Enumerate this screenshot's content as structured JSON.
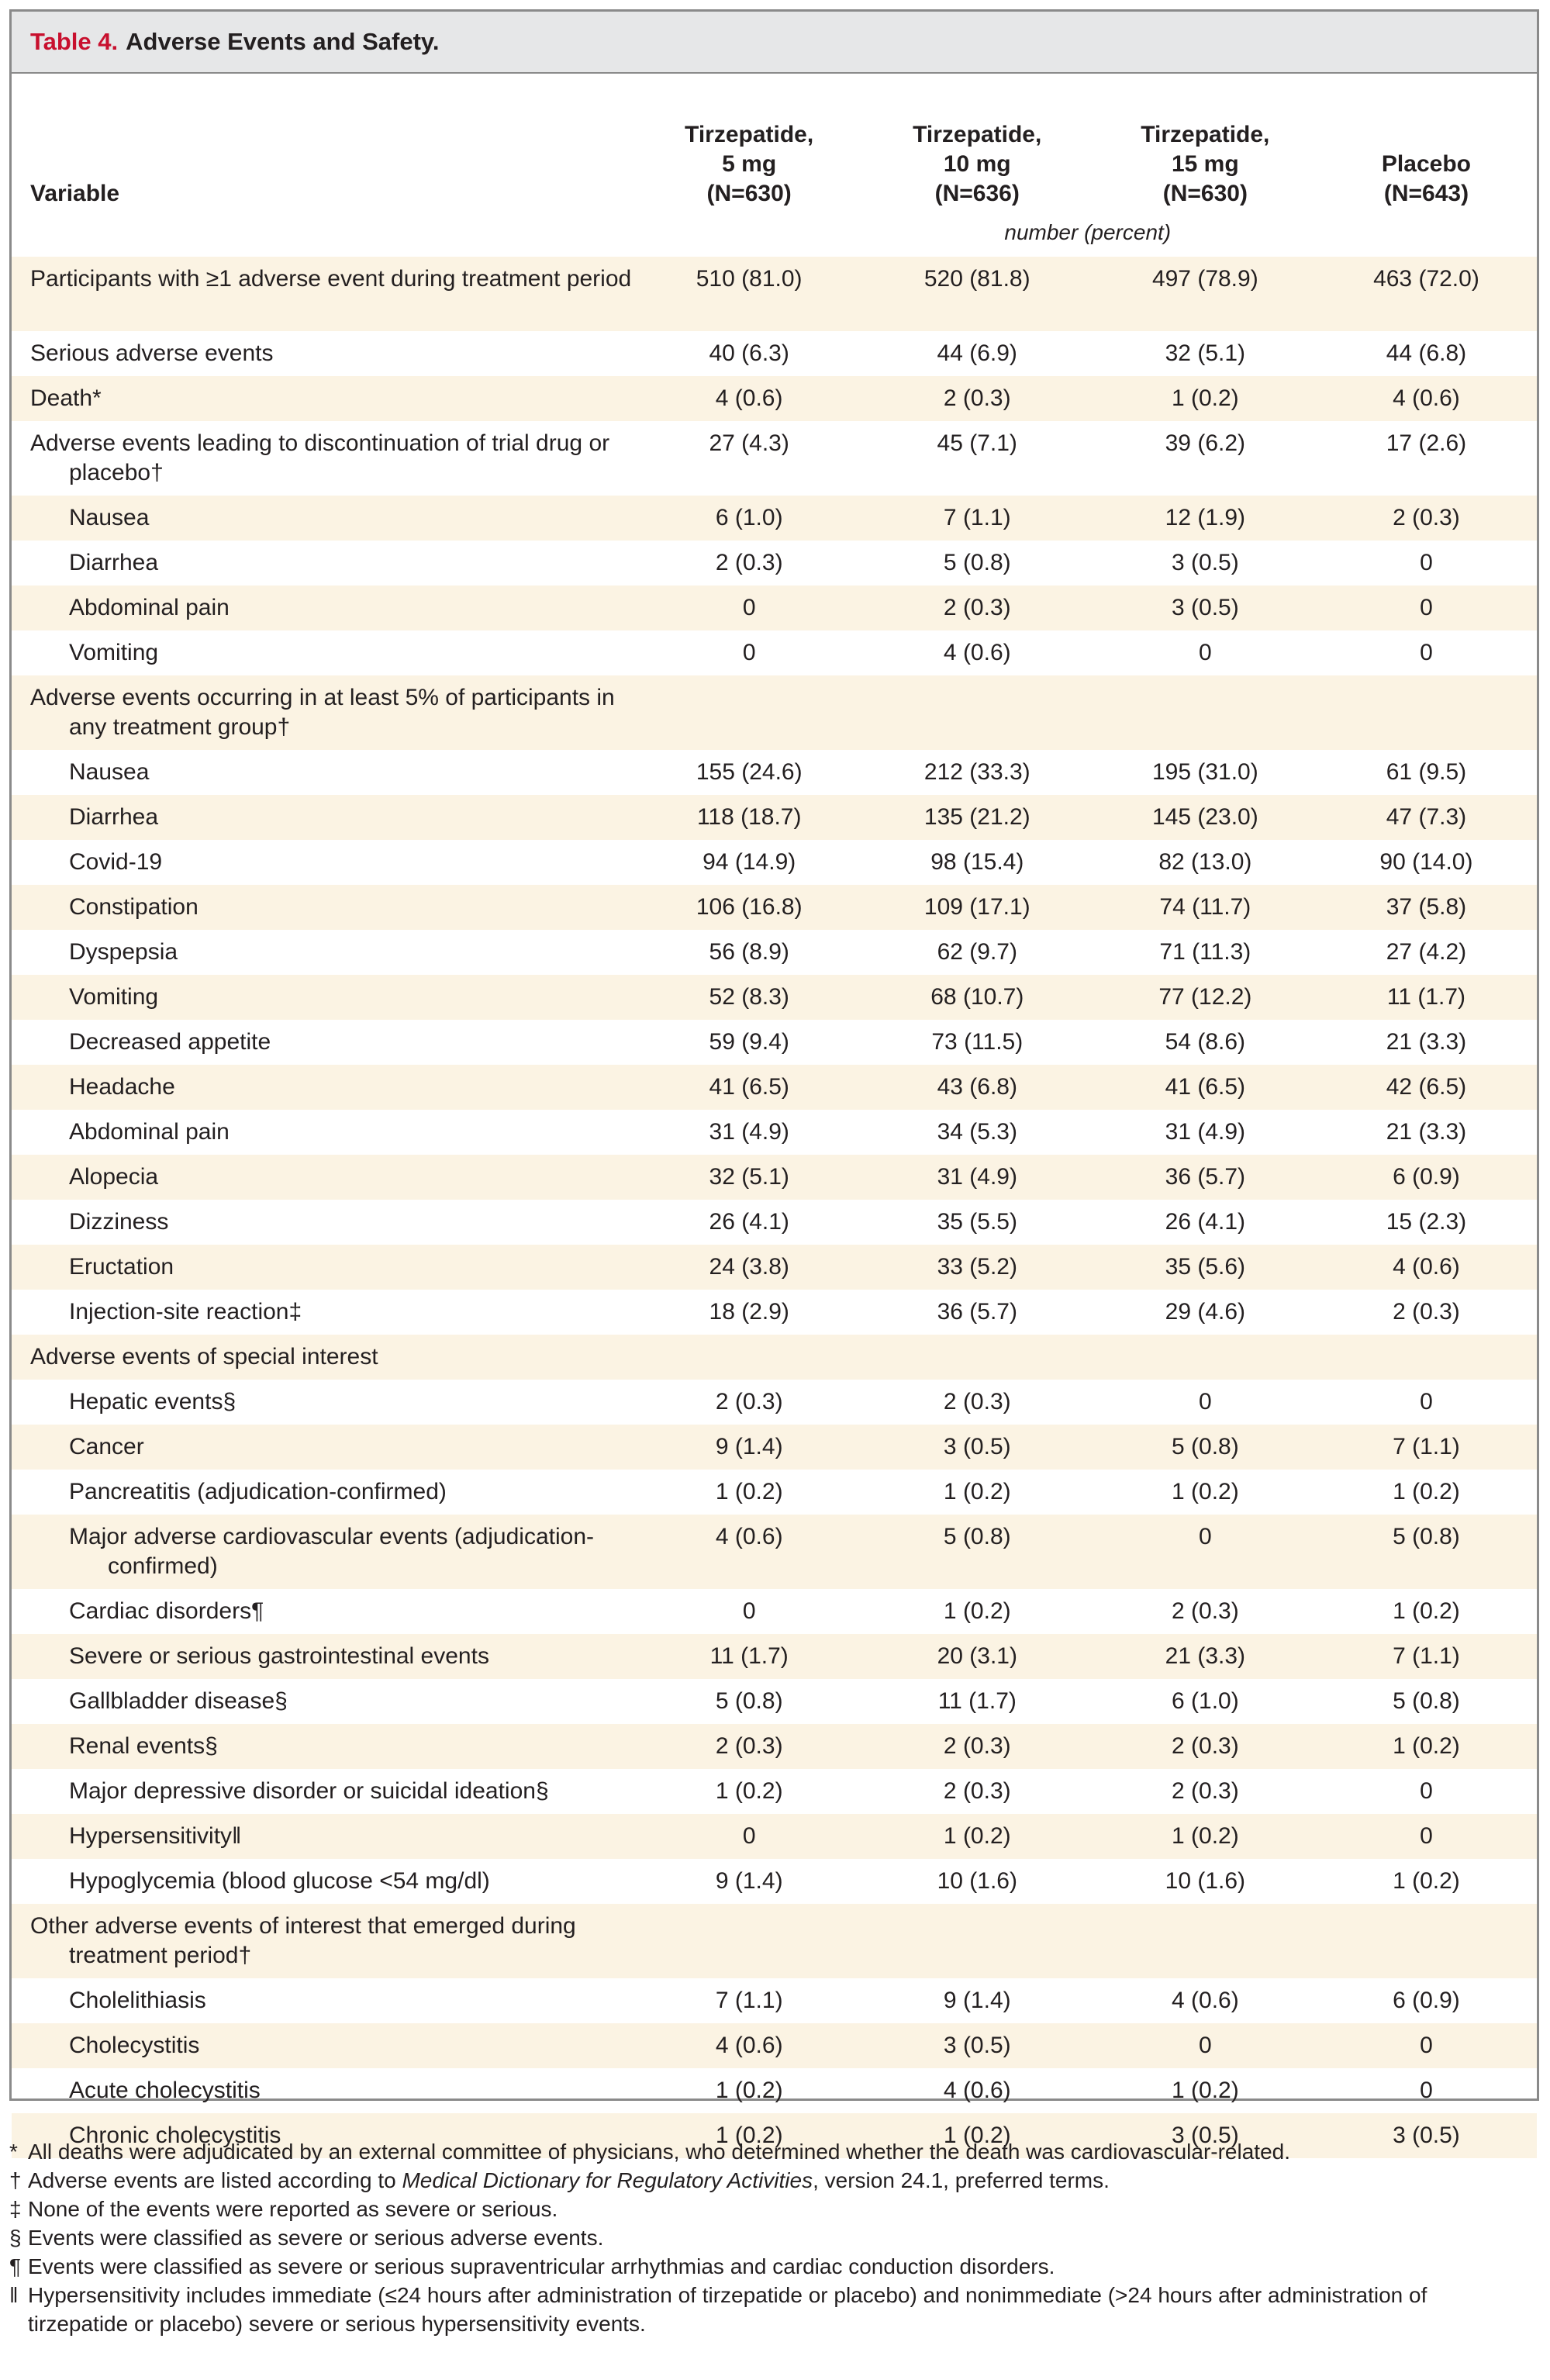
{
  "table": {
    "label": "Table 4.",
    "title": "Adverse Events and Safety.",
    "header": {
      "variable": "Variable",
      "columns": [
        {
          "name": "Tirzepatide,",
          "dose": "5 mg",
          "n": "(N=630)"
        },
        {
          "name": "Tirzepatide,",
          "dose": "10 mg",
          "n": "(N=636)"
        },
        {
          "name": "Tirzepatide,",
          "dose": "15 mg",
          "n": "(N=630)"
        },
        {
          "name": "",
          "dose": "Placebo",
          "n": "(N=643)"
        }
      ],
      "unit": "number (percent)"
    },
    "rows": [
      {
        "label": "Participants with ≥1 adverse event during treatment period",
        "values": [
          "510 (81.0)",
          "520 (81.8)",
          "497 (78.9)",
          "463 (72.0)"
        ]
      },
      {
        "label": "Serious adverse events",
        "values": [
          "40 (6.3)",
          "44 (6.9)",
          "32 (5.1)",
          "44 (6.8)"
        ]
      },
      {
        "label": "Death*",
        "values": [
          "4 (0.6)",
          "2 (0.3)",
          "1 (0.2)",
          "4 (0.6)"
        ]
      },
      {
        "label": "Adverse events leading to discontinuation of trial drug or placebo†",
        "values": [
          "27 (4.3)",
          "45 (7.1)",
          "39 (6.2)",
          "17 (2.6)"
        ]
      },
      {
        "label": "Nausea",
        "values": [
          "6 (1.0)",
          "7 (1.1)",
          "12 (1.9)",
          "2 (0.3)"
        ]
      },
      {
        "label": "Diarrhea",
        "values": [
          "2 (0.3)",
          "5 (0.8)",
          "3 (0.5)",
          "0"
        ]
      },
      {
        "label": "Abdominal pain",
        "values": [
          "0",
          "2 (0.3)",
          "3 (0.5)",
          "0"
        ]
      },
      {
        "label": "Vomiting",
        "values": [
          "0",
          "4 (0.6)",
          "0",
          "0"
        ]
      },
      {
        "label": "Adverse events occurring in at least 5% of participants in any treatment group†",
        "values": [
          "",
          "",
          "",
          ""
        ]
      },
      {
        "label": "Nausea",
        "values": [
          "155 (24.6)",
          "212 (33.3)",
          "195 (31.0)",
          "61 (9.5)"
        ]
      },
      {
        "label": "Diarrhea",
        "values": [
          "118 (18.7)",
          "135 (21.2)",
          "145 (23.0)",
          "47 (7.3)"
        ]
      },
      {
        "label": "Covid-19",
        "values": [
          "94 (14.9)",
          "98 (15.4)",
          "82 (13.0)",
          "90 (14.0)"
        ]
      },
      {
        "label": "Constipation",
        "values": [
          "106 (16.8)",
          "109 (17.1)",
          "74 (11.7)",
          "37 (5.8)"
        ]
      },
      {
        "label": "Dyspepsia",
        "values": [
          "56 (8.9)",
          "62 (9.7)",
          "71 (11.3)",
          "27 (4.2)"
        ]
      },
      {
        "label": "Vomiting",
        "values": [
          "52 (8.3)",
          "68 (10.7)",
          "77 (12.2)",
          "11 (1.7)"
        ]
      },
      {
        "label": "Decreased appetite",
        "values": [
          "59 (9.4)",
          "73 (11.5)",
          "54 (8.6)",
          "21 (3.3)"
        ]
      },
      {
        "label": "Headache",
        "values": [
          "41 (6.5)",
          "43 (6.8)",
          "41 (6.5)",
          "42 (6.5)"
        ]
      },
      {
        "label": "Abdominal pain",
        "values": [
          "31 (4.9)",
          "34 (5.3)",
          "31 (4.9)",
          "21 (3.3)"
        ]
      },
      {
        "label": "Alopecia",
        "values": [
          "32 (5.1)",
          "31 (4.9)",
          "36 (5.7)",
          "6 (0.9)"
        ]
      },
      {
        "label": "Dizziness",
        "values": [
          "26 (4.1)",
          "35 (5.5)",
          "26 (4.1)",
          "15 (2.3)"
        ]
      },
      {
        "label": "Eructation",
        "values": [
          "24 (3.8)",
          "33 (5.2)",
          "35 (5.6)",
          "4 (0.6)"
        ]
      },
      {
        "label": "Injection-site reaction‡",
        "values": [
          "18 (2.9)",
          "36 (5.7)",
          "29 (4.6)",
          "2 (0.3)"
        ]
      },
      {
        "label": "Adverse events of special interest",
        "values": [
          "",
          "",
          "",
          ""
        ]
      },
      {
        "label": "Hepatic events§",
        "values": [
          "2 (0.3)",
          "2 (0.3)",
          "0",
          "0"
        ]
      },
      {
        "label": "Cancer",
        "values": [
          "9 (1.4)",
          "3 (0.5)",
          "5 (0.8)",
          "7 (1.1)"
        ]
      },
      {
        "label": "Pancreatitis (adjudication-confirmed)",
        "values": [
          "1 (0.2)",
          "1 (0.2)",
          "1 (0.2)",
          "1 (0.2)"
        ]
      },
      {
        "label": "Major adverse cardiovascular events (adjudication-confirmed)",
        "values": [
          "4 (0.6)",
          "5 (0.8)",
          "0",
          "5 (0.8)"
        ]
      },
      {
        "label": "Cardiac disorders¶",
        "values": [
          "0",
          "1 (0.2)",
          "2 (0.3)",
          "1 (0.2)"
        ]
      },
      {
        "label": "Severe or serious gastrointestinal events",
        "values": [
          "11 (1.7)",
          "20 (3.1)",
          "21 (3.3)",
          "7 (1.1)"
        ]
      },
      {
        "label": "Gallbladder disease§",
        "values": [
          "5 (0.8)",
          "11 (1.7)",
          "6 (1.0)",
          "5 (0.8)"
        ]
      },
      {
        "label": "Renal events§",
        "values": [
          "2 (0.3)",
          "2 (0.3)",
          "2 (0.3)",
          "1 (0.2)"
        ]
      },
      {
        "label": "Major depressive disorder or suicidal ideation§",
        "values": [
          "1 (0.2)",
          "2 (0.3)",
          "2 (0.3)",
          "0"
        ]
      },
      {
        "label": "Hypersensitivity‖",
        "values": [
          "0",
          "1 (0.2)",
          "1 (0.2)",
          "0"
        ]
      },
      {
        "label": "Hypoglycemia (blood glucose <54 mg/dl)",
        "values": [
          "9 (1.4)",
          "10 (1.6)",
          "10 (1.6)",
          "1 (0.2)"
        ]
      },
      {
        "label": "Other adverse events of interest that emerged during treatment period†",
        "values": [
          "",
          "",
          "",
          ""
        ]
      },
      {
        "label": "Cholelithiasis",
        "values": [
          "7 (1.1)",
          "9 (1.4)",
          "4 (0.6)",
          "6 (0.9)"
        ]
      },
      {
        "label": "Cholecystitis",
        "values": [
          "4 (0.6)",
          "3 (0.5)",
          "0",
          "0"
        ]
      },
      {
        "label": "Acute cholecystitis",
        "values": [
          "1 (0.2)",
          "4 (0.6)",
          "1 (0.2)",
          "0"
        ]
      },
      {
        "label": "Chronic cholecystitis",
        "values": [
          "1 (0.2)",
          "1 (0.2)",
          "3 (0.5)",
          "3 (0.5)"
        ]
      }
    ]
  },
  "footnotes": [
    {
      "mark": "*",
      "parts": [
        {
          "text": "All deaths were adjudicated by an external committee of physicians, who determined whether the death was cardiovascular-related."
        }
      ]
    },
    {
      "mark": "†",
      "parts": [
        {
          "text": "Adverse events are listed according to "
        },
        {
          "text": "Medical Dictionary for Regulatory Activities",
          "italic": true
        },
        {
          "text": ", version 24.1, preferred terms."
        }
      ]
    },
    {
      "mark": "‡",
      "parts": [
        {
          "text": "None of the events were reported as severe or serious."
        }
      ]
    },
    {
      "mark": "§",
      "parts": [
        {
          "text": "Events were classified as severe or serious adverse events."
        }
      ]
    },
    {
      "mark": "¶",
      "parts": [
        {
          "text": "Events were classified as severe or serious supraventricular arrhythmias and cardiac conduction disorders."
        }
      ]
    },
    {
      "mark": "‖",
      "parts": [
        {
          "text": "Hypersensitivity includes immediate (≤24 hours after administration of tirzepatide or placebo) and nonimmediate (>24 hours after administration of tirzepatide or placebo) severe or serious hypersensitivity events."
        }
      ]
    }
  ]
}
